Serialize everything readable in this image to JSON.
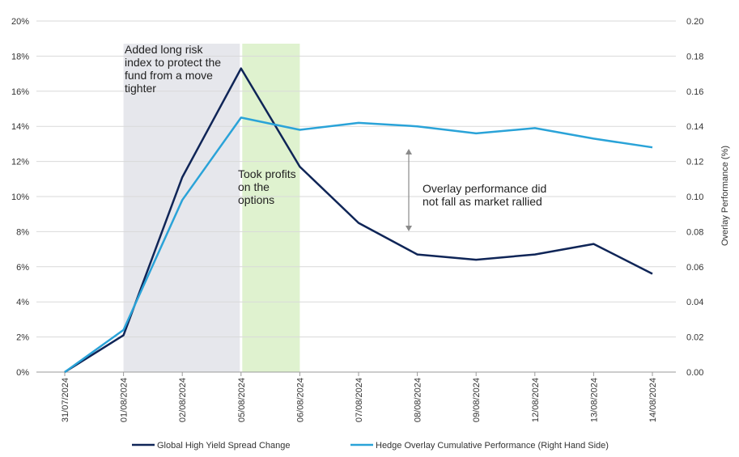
{
  "chart_data": {
    "type": "line",
    "categories": [
      "31/07/2024",
      "01/08/2024",
      "02/08/2024",
      "05/08/2024",
      "06/08/2024",
      "07/08/2024",
      "08/08/2024",
      "09/08/2024",
      "12/08/2024",
      "13/08/2024",
      "14/08/2024"
    ],
    "left_axis": {
      "ticks": [
        "0%",
        "2%",
        "4%",
        "6%",
        "8%",
        "10%",
        "12%",
        "14%",
        "16%",
        "18%",
        "20%"
      ],
      "ylim": [
        0,
        20
      ]
    },
    "right_axis": {
      "ticks": [
        "0.00",
        "0.02",
        "0.04",
        "0.06",
        "0.08",
        "0.10",
        "0.12",
        "0.14",
        "0.16",
        "0.18",
        "0.20"
      ],
      "ylim": [
        0,
        0.2
      ],
      "label": "Overlay Performance (%)"
    },
    "series": [
      {
        "name": "Global High Yield Spread Change",
        "axis": "left",
        "color": "#0f2557",
        "values": [
          0,
          2.1,
          11.1,
          17.3,
          11.7,
          8.5,
          6.7,
          6.4,
          6.7,
          7.3,
          5.6
        ]
      },
      {
        "name": "Hedge Overlay Cumulative Performance (Right Hand Side)",
        "axis": "right",
        "color": "#2aa3d8",
        "values": [
          0,
          0.024,
          0.098,
          0.145,
          0.138,
          0.142,
          0.14,
          0.136,
          0.139,
          0.133,
          0.128
        ]
      }
    ],
    "shaded_regions": [
      {
        "from": "01/08/2024",
        "to": "05/08/2024",
        "color": "#e6e7ec"
      },
      {
        "from": "05/08/2024",
        "to": "06/08/2024",
        "color": "#dff2cf"
      }
    ],
    "annotations": [
      {
        "lines": [
          "Added long risk",
          "index to protect the",
          "fund from a move",
          "tighter"
        ]
      },
      {
        "lines": [
          "Took profits",
          "on the",
          "options"
        ]
      },
      {
        "lines": [
          "Overlay performance did",
          "not fall as market rallied"
        ]
      }
    ],
    "grid": true,
    "legend_position": "bottom"
  }
}
